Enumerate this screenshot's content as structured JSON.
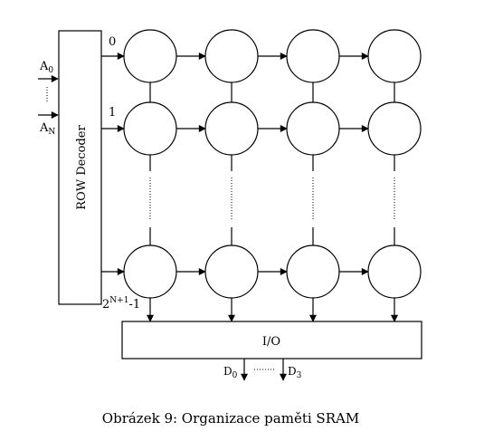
{
  "decoder": {
    "label": "ROW Decoder",
    "inputs": [
      {
        "base": "A",
        "sub": "0"
      },
      {
        "base": "A",
        "sub": "N"
      }
    ],
    "row_labels": [
      {
        "text": "0",
        "sup": ""
      },
      {
        "text": "1",
        "sup": ""
      },
      {
        "text": "2",
        "sup": "N+1",
        "tail": "-1"
      }
    ]
  },
  "cell_grid": {
    "columns": 4,
    "visible_rows": 3
  },
  "io": {
    "label": "I/O",
    "outputs": [
      {
        "base": "D",
        "sub": "0"
      },
      {
        "base": "D",
        "sub": "3"
      }
    ]
  },
  "caption": "Obrázek 9: Organizace paměti SRAM",
  "colors": {
    "stroke": "#000000",
    "background": "#ffffff"
  }
}
